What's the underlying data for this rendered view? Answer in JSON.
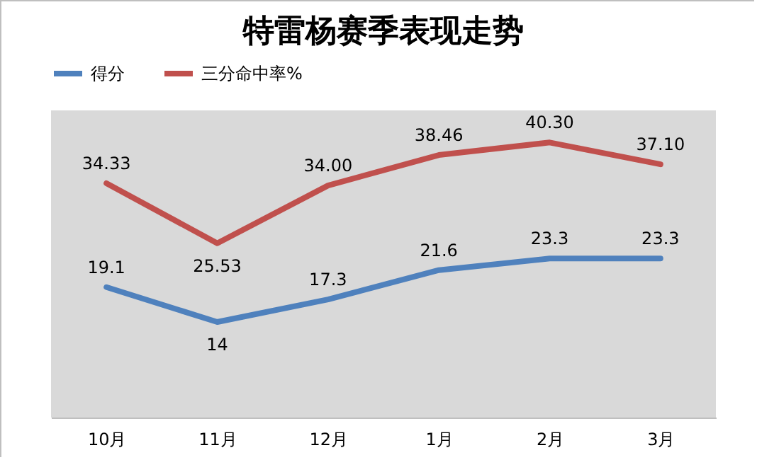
{
  "chart_data": {
    "type": "line",
    "title": "特雷杨赛季表现走势",
    "categories": [
      "10月",
      "11月",
      "12月",
      "1月",
      "2月",
      "3月"
    ],
    "series": [
      {
        "name": "得分",
        "color": "#4f81bd",
        "values": [
          19.1,
          14,
          17.3,
          21.6,
          23.3,
          23.3
        ],
        "value_labels": [
          "19.1",
          "14",
          "17.3",
          "21.6",
          "23.3",
          "23.3"
        ]
      },
      {
        "name": "三分命中率%",
        "color": "#c0504d",
        "values": [
          34.33,
          25.53,
          34.0,
          38.46,
          40.3,
          37.1
        ],
        "value_labels": [
          "34.33",
          "25.53",
          "34.00",
          "38.46",
          "40.30",
          "37.10"
        ]
      }
    ],
    "legend": "top"
  }
}
